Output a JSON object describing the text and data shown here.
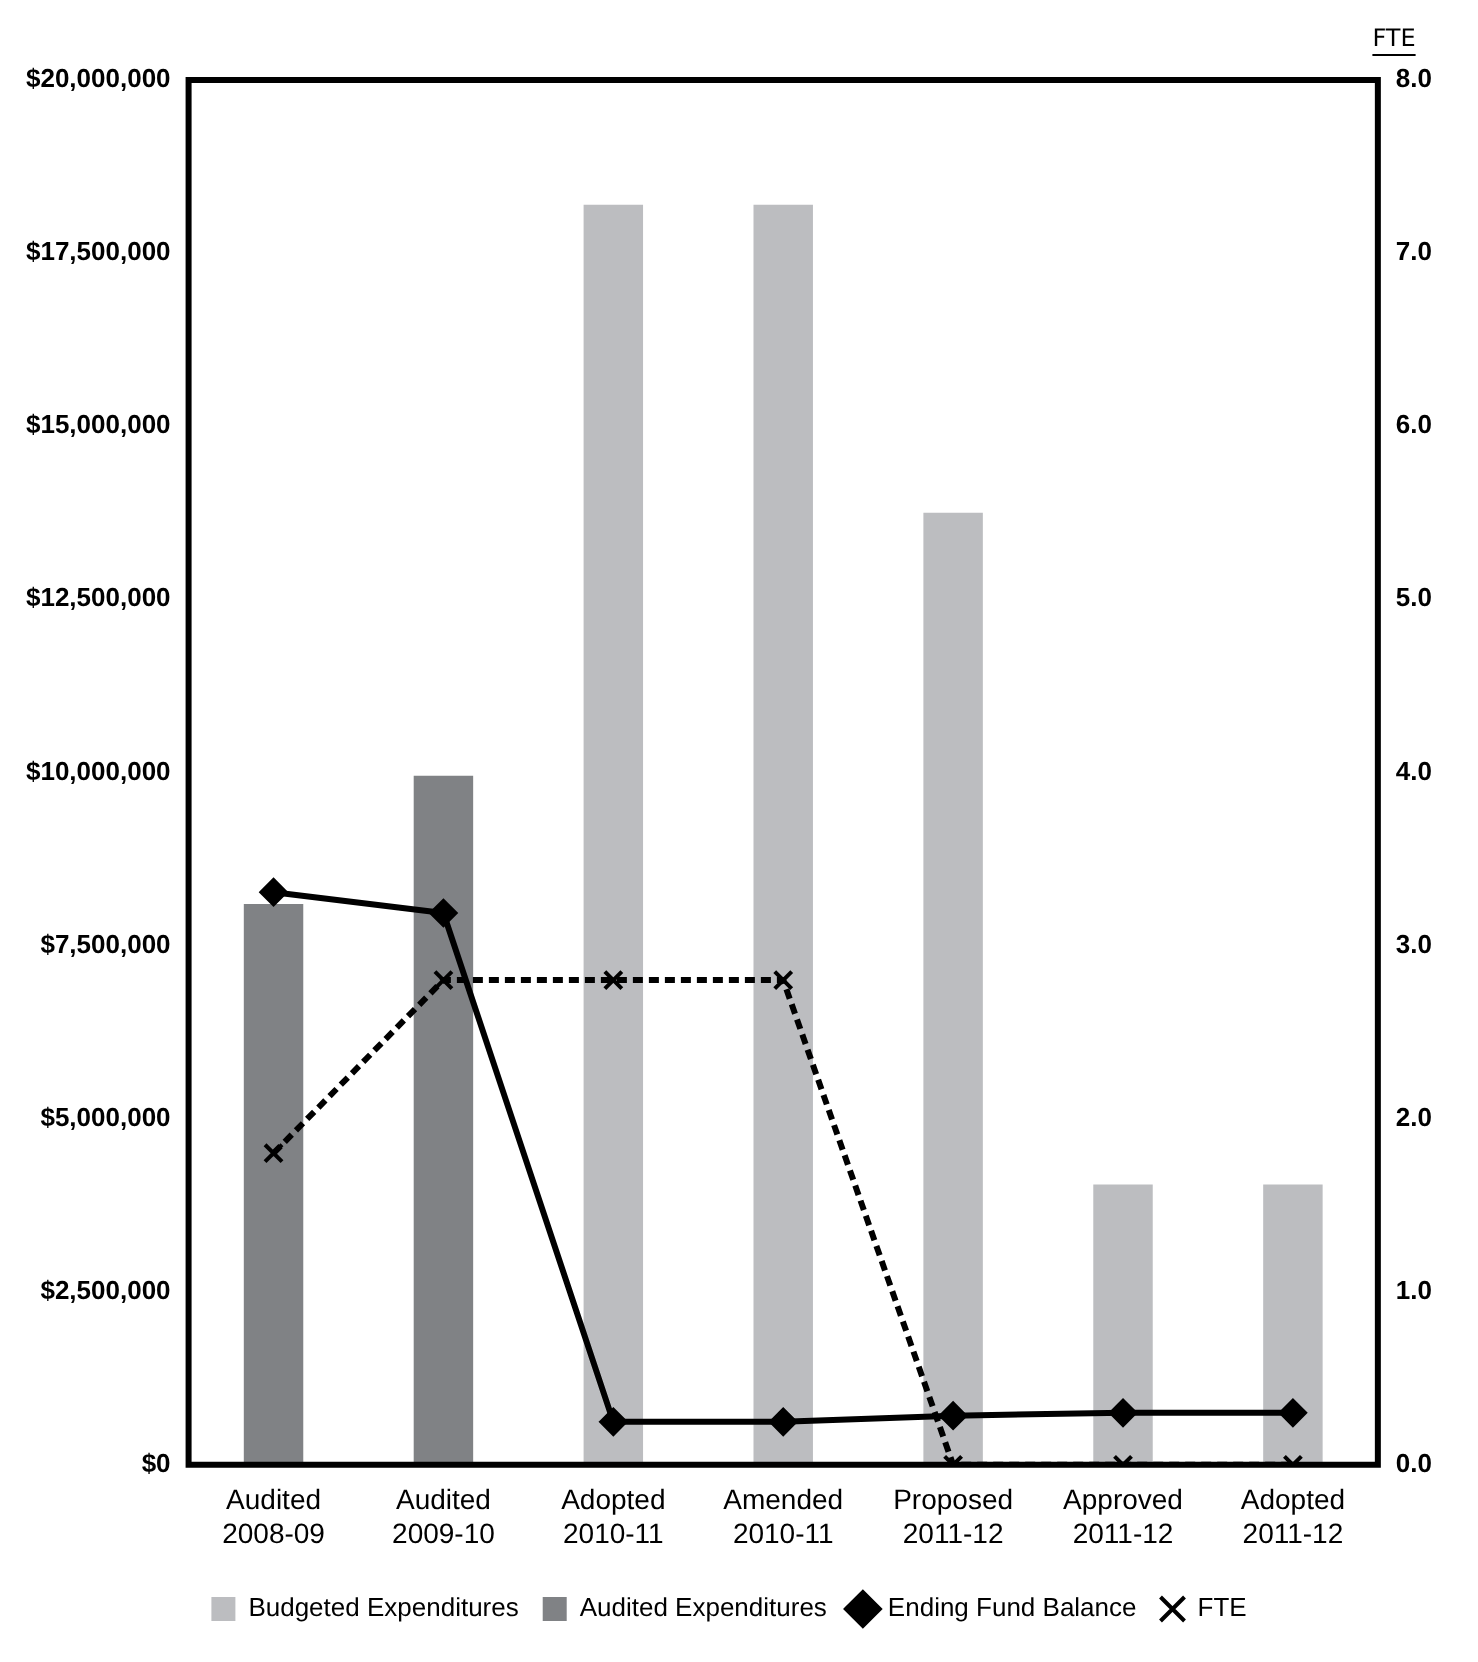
{
  "chart_data": {
    "type": "bar",
    "categories": [
      "Audited 2008-09",
      "Audited 2009-10",
      "Adopted 2010-11",
      "Amended 2010-11",
      "Proposed 2011-12",
      "Approved 2011-12",
      "Adopted 2011-12"
    ],
    "series": [
      {
        "name": "Budgeted Expenditures",
        "color": "#bcbdc0",
        "values": [
          null,
          null,
          18200000,
          18200000,
          13750000,
          4050000,
          4050000
        ]
      },
      {
        "name": "Audited Expenditures",
        "color": "#808285",
        "values": [
          8100000,
          9950000,
          null,
          null,
          null,
          null,
          null
        ]
      },
      {
        "name": "Ending Fund Balance",
        "type": "line",
        "color": "#000000",
        "marker": "diamond",
        "line_style": "solid",
        "values": [
          8270000,
          7970000,
          620000,
          620000,
          710000,
          750000,
          750000
        ]
      },
      {
        "name": "FTE",
        "type": "line",
        "axis": "y2",
        "color": "#000000",
        "marker": "cross",
        "line_style": "dashed",
        "values": [
          1.8,
          2.8,
          2.8,
          2.8,
          0,
          0,
          0
        ]
      }
    ],
    "y2label": "FTE",
    "ylim": [
      0,
      20000000
    ],
    "yticks": [
      {
        "value": 0,
        "label": "$0"
      },
      {
        "value": 2500000,
        "label": "$2,500,000"
      },
      {
        "value": 5000000,
        "label": "$5,000,000"
      },
      {
        "value": 7500000,
        "label": "$7,500,000"
      },
      {
        "value": 10000000,
        "label": "$10,000,000"
      },
      {
        "value": 12500000,
        "label": "$12,500,000"
      },
      {
        "value": 15000000,
        "label": "$15,000,000"
      },
      {
        "value": 17500000,
        "label": "$17,500,000"
      },
      {
        "value": 20000000,
        "label": "$20,000,000"
      }
    ],
    "y2lim": [
      0,
      8
    ],
    "y2ticks": [
      {
        "value": 0,
        "label": "0.0"
      },
      {
        "value": 1,
        "label": "1.0"
      },
      {
        "value": 2,
        "label": "2.0"
      },
      {
        "value": 3,
        "label": "3.0"
      },
      {
        "value": 4,
        "label": "4.0"
      },
      {
        "value": 5,
        "label": "5.0"
      },
      {
        "value": 6,
        "label": "6.0"
      },
      {
        "value": 7,
        "label": "7.0"
      },
      {
        "value": 8,
        "label": "8.0"
      }
    ],
    "grid": false,
    "legend": "bottom"
  }
}
